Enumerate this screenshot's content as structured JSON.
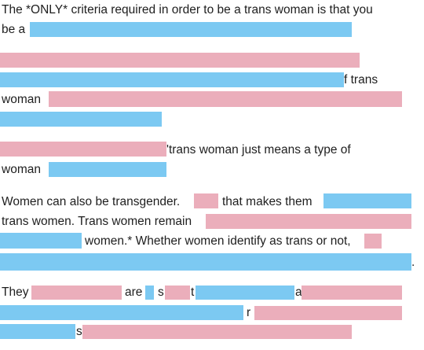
{
  "text_runs": [
    "The *ONLY* criteria required in order to be a trans woman is that you",
    "be a",
    "f trans",
    "woman",
    "'trans woman just means a type of",
    "woman",
    "Women can also be transgender.",
    "that makes them",
    "trans women. Trans women remain",
    "women.* Whether women identify as trans or not,",
    ".",
    "They",
    "are",
    "s",
    "t",
    "a",
    "r",
    "s"
  ]
}
